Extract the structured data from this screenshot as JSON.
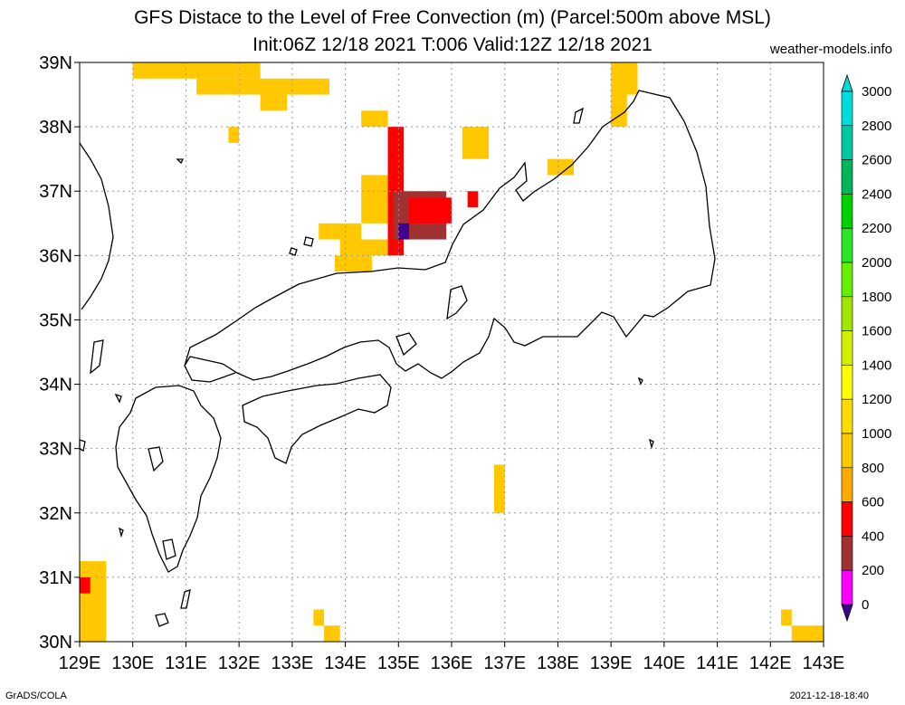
{
  "title_line1": "GFS Distace to the Level of Free Convection (m) (Parcel:500m above MSL)",
  "title_line2": "Init:06Z 12/18 2021 T:006 Valid:12Z 12/18 2021",
  "site": "weather-models.info",
  "footer_left": "GrADS/COLA",
  "footer_right": "2021-12-18-18:40",
  "lat_labels": [
    "39N",
    "38N",
    "37N",
    "36N",
    "35N",
    "34N",
    "33N",
    "32N",
    "31N",
    "30N"
  ],
  "lon_labels": [
    "129E",
    "130E",
    "131E",
    "132E",
    "133E",
    "134E",
    "135E",
    "136E",
    "137E",
    "138E",
    "139E",
    "140E",
    "141E",
    "142E",
    "143E"
  ],
  "colorbar": {
    "labels": [
      "3000",
      "2800",
      "2600",
      "2400",
      "2200",
      "2000",
      "1800",
      "1600",
      "1400",
      "1200",
      "1000",
      "800",
      "600",
      "400",
      "200",
      "0"
    ],
    "colors": [
      "#00dcdc",
      "#00c8a0",
      "#00b45a",
      "#00d200",
      "#28e628",
      "#64f000",
      "#a0e600",
      "#d2f000",
      "#ffff00",
      "#ffdc00",
      "#ffc800",
      "#ffaa00",
      "#ff0000",
      "#a03232",
      "#ff00ff",
      "#400090"
    ]
  },
  "chart_data": {
    "type": "heatmap",
    "xlim": [
      129,
      143
    ],
    "ylim": [
      30,
      39
    ],
    "grid": true,
    "cells": [
      {
        "x": [
          130.0,
          132.4
        ],
        "y": [
          38.75,
          39.0
        ],
        "v": 1000
      },
      {
        "x": [
          131.2,
          133.7
        ],
        "y": [
          38.5,
          38.75
        ],
        "v": 1100
      },
      {
        "x": [
          132.4,
          132.9
        ],
        "y": [
          38.25,
          38.5
        ],
        "v": 1000
      },
      {
        "x": [
          131.8,
          132.0
        ],
        "y": [
          37.75,
          38.0
        ],
        "v": 1100
      },
      {
        "x": [
          139.0,
          139.5
        ],
        "y": [
          38.5,
          39.0
        ],
        "v": 1100
      },
      {
        "x": [
          139.0,
          139.3
        ],
        "y": [
          38.0,
          38.5
        ],
        "v": 1000
      },
      {
        "x": [
          136.2,
          136.7
        ],
        "y": [
          37.5,
          38.0
        ],
        "v": 1100
      },
      {
        "x": [
          137.8,
          138.3
        ],
        "y": [
          37.25,
          37.5
        ],
        "v": 1100
      },
      {
        "x": [
          134.3,
          134.8
        ],
        "y": [
          38.0,
          38.25
        ],
        "v": 1000
      },
      {
        "x": [
          133.5,
          134.3
        ],
        "y": [
          36.25,
          36.5
        ],
        "v": 1100
      },
      {
        "x": [
          133.9,
          135.0
        ],
        "y": [
          36.0,
          36.25
        ],
        "v": 1000
      },
      {
        "x": [
          133.8,
          134.5
        ],
        "y": [
          35.75,
          36.0
        ],
        "v": 1100
      },
      {
        "x": [
          134.3,
          134.8
        ],
        "y": [
          36.5,
          37.25
        ],
        "v": 1000
      },
      {
        "x": [
          134.8,
          135.1
        ],
        "y": [
          36.0,
          38.0
        ],
        "v": 700
      },
      {
        "x": [
          134.9,
          135.9
        ],
        "y": [
          36.25,
          37.0
        ],
        "v": 500
      },
      {
        "x": [
          135.2,
          136.0
        ],
        "y": [
          36.5,
          36.9
        ],
        "v": 600
      },
      {
        "x": [
          136.3,
          136.5
        ],
        "y": [
          36.75,
          37.0
        ],
        "v": 600
      },
      {
        "x": [
          135.0,
          135.2
        ],
        "y": [
          36.25,
          36.5
        ],
        "v": 150
      },
      {
        "x": [
          136.8,
          137.0
        ],
        "y": [
          32.0,
          32.75
        ],
        "v": 1000
      },
      {
        "x": [
          129.0,
          129.5
        ],
        "y": [
          30.0,
          31.25
        ],
        "v": 1000
      },
      {
        "x": [
          129.0,
          129.2
        ],
        "y": [
          30.75,
          31.0
        ],
        "v": 600
      },
      {
        "x": [
          133.4,
          133.6
        ],
        "y": [
          30.25,
          30.5
        ],
        "v": 1100
      },
      {
        "x": [
          133.6,
          133.9
        ],
        "y": [
          30.0,
          30.25
        ],
        "v": 1100
      },
      {
        "x": [
          142.2,
          142.4
        ],
        "y": [
          30.25,
          30.5
        ],
        "v": 1100
      },
      {
        "x": [
          142.4,
          143.0
        ],
        "y": [
          30.0,
          30.25
        ],
        "v": 1100
      }
    ]
  }
}
